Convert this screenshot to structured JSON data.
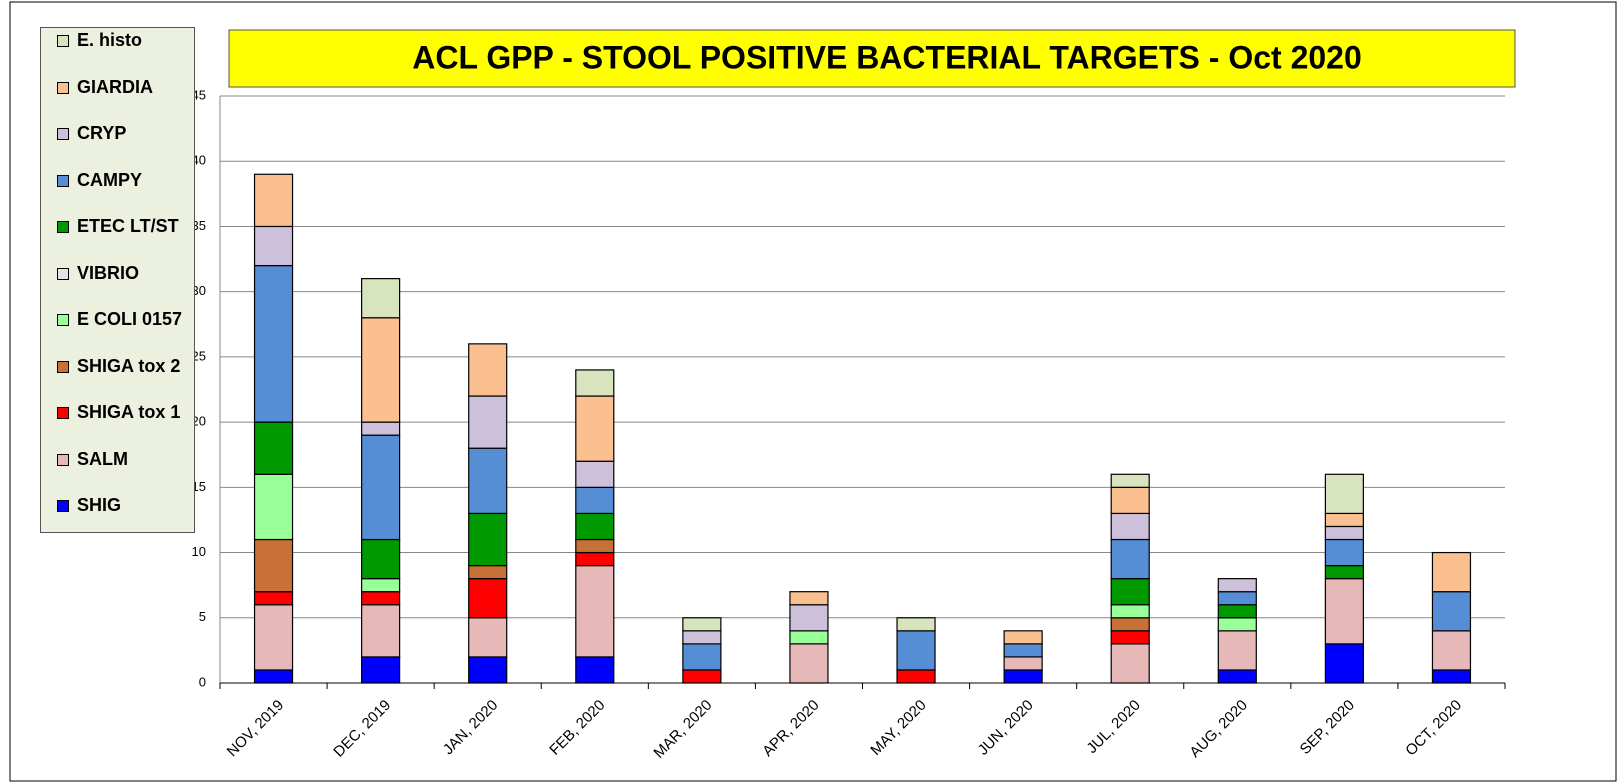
{
  "chart_data": {
    "type": "stacked_bar",
    "title": "ACL GPP - STOOL POSITIVE BACTERIAL TARGETS - Oct 2020",
    "categories": [
      "NOV, 2019",
      "DEC, 2019",
      "JAN, 2020",
      "FEB, 2020",
      "MAR, 2020",
      "APR, 2020",
      "MAY, 2020",
      "JUN, 2020",
      "JUL, 2020",
      "AUG, 2020",
      "SEP, 2020",
      "OCT, 2020"
    ],
    "series": [
      {
        "name": "SHIG",
        "color": "#0000ff",
        "values": [
          1,
          2,
          2,
          2,
          0,
          0,
          0,
          1,
          0,
          1,
          3,
          1
        ]
      },
      {
        "name": "SALM",
        "color": "#e6b8b7",
        "values": [
          5,
          4,
          3,
          7,
          0,
          3,
          0,
          1,
          3,
          3,
          5,
          3
        ]
      },
      {
        "name": "SHIGA tox 1",
        "color": "#ff0000",
        "values": [
          1,
          1,
          3,
          1,
          1,
          0,
          1,
          0,
          1,
          0,
          0,
          0
        ]
      },
      {
        "name": "SHIGA tox 2",
        "color": "#c87137",
        "values": [
          4,
          0,
          1,
          1,
          0,
          0,
          0,
          0,
          1,
          0,
          0,
          0
        ]
      },
      {
        "name": "E COLI 0157",
        "color": "#99ff99",
        "values": [
          5,
          1,
          0,
          0,
          0,
          1,
          0,
          0,
          1,
          1,
          0,
          0
        ]
      },
      {
        "name": "VIBRIO",
        "color": "#e3e3e3",
        "values": [
          0,
          0,
          0,
          0,
          0,
          0,
          0,
          0,
          0,
          0,
          0,
          0
        ]
      },
      {
        "name": "ETEC LT/ST",
        "color": "#009900",
        "values": [
          4,
          3,
          4,
          2,
          0,
          0,
          0,
          0,
          2,
          1,
          1,
          0
        ]
      },
      {
        "name": "CAMPY",
        "color": "#558ed5",
        "values": [
          12,
          8,
          5,
          2,
          2,
          0,
          3,
          1,
          3,
          1,
          2,
          3
        ]
      },
      {
        "name": "CRYP",
        "color": "#ccc0da",
        "values": [
          3,
          1,
          4,
          2,
          1,
          2,
          0,
          0,
          2,
          1,
          1,
          0
        ]
      },
      {
        "name": "GIARDIA",
        "color": "#fac090",
        "values": [
          4,
          8,
          4,
          5,
          0,
          1,
          0,
          1,
          2,
          0,
          1,
          3
        ]
      },
      {
        "name": "E. histo",
        "color": "#d7e4bd",
        "values": [
          0,
          3,
          0,
          2,
          1,
          0,
          1,
          0,
          1,
          0,
          3,
          0
        ]
      }
    ],
    "ylim": [
      0,
      45
    ],
    "yticks": [
      0,
      5,
      10,
      15,
      20,
      25,
      30,
      35,
      40,
      45
    ],
    "grid": true
  }
}
